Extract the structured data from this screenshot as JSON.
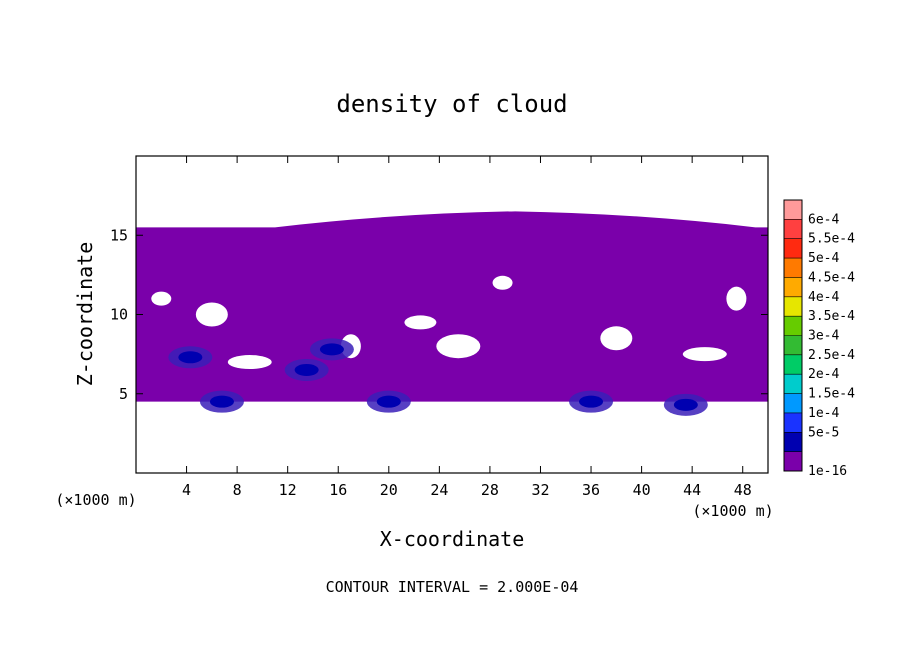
{
  "chart_data": {
    "type": "heatmap",
    "title": "density of cloud",
    "xlabel": "X-coordinate",
    "ylabel": "Z-coordinate",
    "x_unit_left": "(×1000 m)",
    "x_unit_right": "(×1000 m)",
    "xlim": [
      0,
      50
    ],
    "ylim": [
      0,
      20
    ],
    "x_ticks": [
      4,
      8,
      12,
      16,
      20,
      24,
      28,
      32,
      36,
      40,
      44,
      48
    ],
    "x_tick_labels": [
      "4",
      "8",
      "12",
      "16",
      "20",
      "24",
      "28",
      "32",
      "36",
      "40",
      "44",
      "48"
    ],
    "y_ticks": [
      5,
      10,
      15
    ],
    "y_tick_labels": [
      "5",
      "10",
      "15"
    ],
    "footer": "CONTOUR INTERVAL = 2.000E-04",
    "colorbar": {
      "labels": [
        "6e-4",
        "5.5e-4",
        "5e-4",
        "4.5e-4",
        "4e-4",
        "3.5e-4",
        "3e-4",
        "2.5e-4",
        "2e-4",
        "1.5e-4",
        "1e-4",
        "5e-5",
        "1e-16"
      ],
      "colors": [
        "#ff9a9a",
        "#ff4040",
        "#ff2a10",
        "#ff7a00",
        "#ffaa00",
        "#e6e600",
        "#66cc00",
        "#33bb33",
        "#00cc66",
        "#00cccc",
        "#0099ff",
        "#1a33ff",
        "#0000b0",
        "#7a00aa"
      ]
    },
    "cloud_region": {
      "z_top": 15.5,
      "z_bottom": 4.5,
      "color": "#7a00aa",
      "holes": [
        {
          "x": 2,
          "z": 11
        },
        {
          "x": 6,
          "z": 10
        },
        {
          "x": 9,
          "z": 7
        },
        {
          "x": 17,
          "z": 8
        },
        {
          "x": 22.5,
          "z": 9.5
        },
        {
          "x": 25.5,
          "z": 8
        },
        {
          "x": 29,
          "z": 12
        },
        {
          "x": 38,
          "z": 8.5
        },
        {
          "x": 45,
          "z": 7.5
        },
        {
          "x": 47.5,
          "z": 11
        }
      ],
      "blue_cores": [
        {
          "x": 6.8,
          "z": 4.5,
          "level": "5e-5"
        },
        {
          "x": 20.0,
          "z": 4.5,
          "level": "5e-5"
        },
        {
          "x": 36.0,
          "z": 4.5,
          "level": "5e-5"
        },
        {
          "x": 43.5,
          "z": 4.3,
          "level": "5e-5"
        },
        {
          "x": 13.5,
          "z": 6.5,
          "level": "5e-5"
        },
        {
          "x": 15.5,
          "z": 7.8,
          "level": "5e-5"
        },
        {
          "x": 4.3,
          "z": 7.3,
          "level": "5e-5"
        }
      ]
    }
  }
}
